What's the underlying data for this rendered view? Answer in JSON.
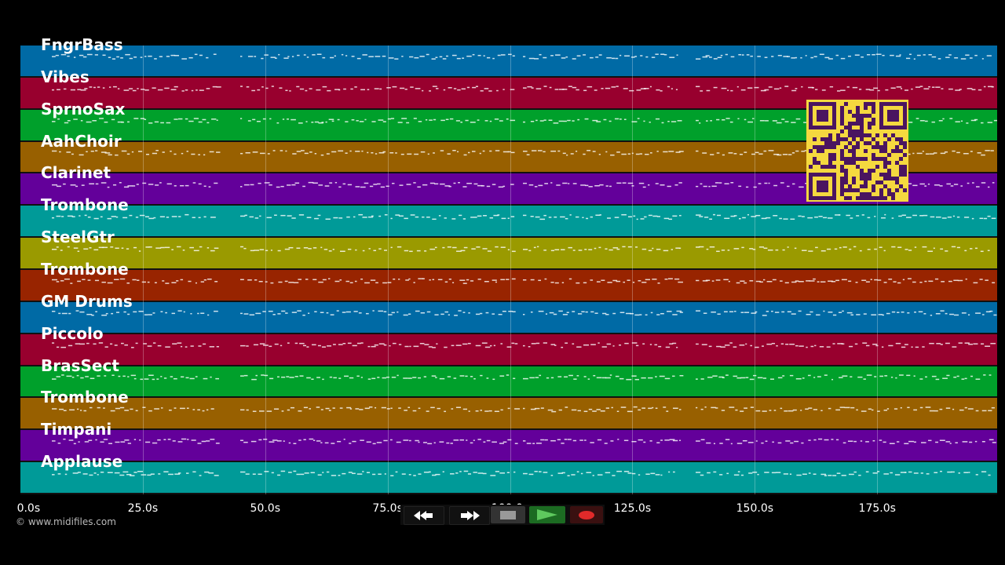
{
  "tracks": [
    {
      "name": "FngrBass",
      "color": "#006aa5"
    },
    {
      "name": "Vibes",
      "color": "#98002e"
    },
    {
      "name": "SprnoSax",
      "color": "#00a02b"
    },
    {
      "name": "AahChoir",
      "color": "#986000"
    },
    {
      "name": "Clarinet",
      "color": "#63009a"
    },
    {
      "name": "Trombone",
      "color": "#009a98"
    },
    {
      "name": "SteelGtr",
      "color": "#9a9a00"
    },
    {
      "name": "Trombone",
      "color": "#982400"
    },
    {
      "name": "GM Drums",
      "color": "#006aa5"
    },
    {
      "name": "Piccolo",
      "color": "#98002e"
    },
    {
      "name": "BrasSect",
      "color": "#00a02b"
    },
    {
      "name": "Trombone",
      "color": "#986000"
    },
    {
      "name": "Timpani",
      "color": "#63009a"
    },
    {
      "name": "Applause",
      "color": "#009a98"
    }
  ],
  "timeline": {
    "ticks": [
      "0.0s",
      "25.0s",
      "50.0s",
      "75.0s",
      "100.0s",
      "125.0s",
      "150.0s",
      "175.0s"
    ],
    "tick_seconds": [
      0,
      25,
      50,
      75,
      100,
      125,
      150,
      175
    ],
    "visible_seconds": 199.5
  },
  "copyright": "© www.midifiles.com",
  "transport": {
    "buttons": [
      {
        "name": "rewind-button",
        "icon": "rewind-icon"
      },
      {
        "name": "fast-forward-button",
        "icon": "fast-forward-icon"
      },
      {
        "name": "stop-button",
        "icon": "stop-icon"
      },
      {
        "name": "play-button",
        "icon": "play-icon"
      },
      {
        "name": "record-button",
        "icon": "record-icon"
      }
    ]
  },
  "qr_color": "#f5d93f",
  "qr_dark": "#4a1560"
}
